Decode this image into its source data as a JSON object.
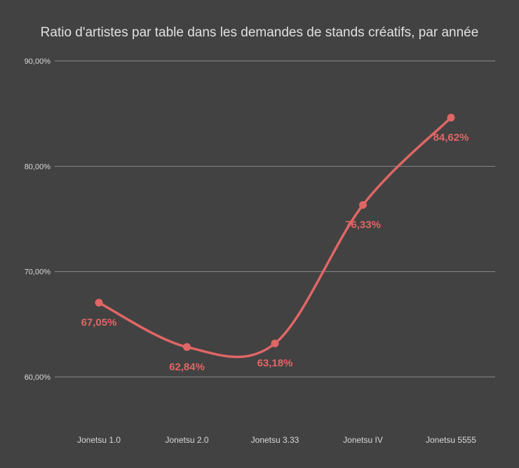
{
  "chart_data": {
    "type": "line",
    "title": "Ratio d'artistes par table dans les demandes de stands créatifs, par année",
    "categories": [
      "Jonetsu 1.0",
      "Jonetsu 2.0",
      "Jonetsu 3.33",
      "Jonetsu IV",
      "Jonetsu 5555"
    ],
    "series": [
      {
        "values": [
          67.05,
          62.84,
          63.18,
          76.33,
          84.62
        ],
        "data_labels": [
          "67,05%",
          "62,84%",
          "63,18%",
          "76,33%",
          "84,62%"
        ],
        "color": "#e06666",
        "smooth": true
      }
    ],
    "y_ticks": [
      60,
      70,
      80,
      90
    ],
    "y_tick_labels": [
      "60,00%",
      "70,00%",
      "80,00%",
      "90,00%"
    ],
    "ylim": [
      60,
      90
    ],
    "grid": true,
    "background": "#424242",
    "text_color": "#d9d9d9",
    "grid_color": "#8a8a8a"
  }
}
